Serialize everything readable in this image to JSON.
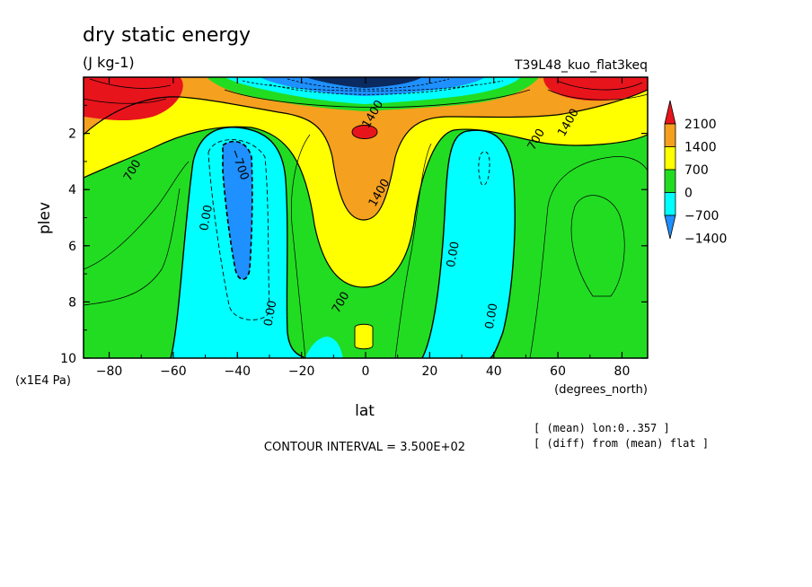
{
  "chart_data": {
    "type": "contour",
    "title": "dry static energy",
    "units": "(J kg-1)",
    "run_label": "T39L48_kuo_flat3keq",
    "xlabel": "lat",
    "x_units": "(degrees_north)",
    "ylabel": "plev",
    "y_units": "(x1E4 Pa)",
    "xlim": [
      -88,
      88
    ],
    "ylim": [
      0,
      10
    ],
    "y_inverted": true,
    "x_ticks": [
      -80,
      -60,
      -40,
      -20,
      0,
      20,
      40,
      60,
      80
    ],
    "x_tick_labels": [
      "-80",
      "-60",
      "-40",
      "-20",
      "0",
      "20",
      "40",
      "60",
      "80"
    ],
    "y_ticks": [
      2,
      4,
      6,
      8,
      10
    ],
    "y_tick_labels": [
      "2",
      "4",
      "6",
      "8",
      "10"
    ],
    "contour_interval_text": "CONTOUR INTERVAL = 3.500E+02",
    "notes": [
      "[ (mean) lon:0..357 ]",
      "[ (diff) from (mean) flat ]"
    ],
    "colorbar": {
      "labels": [
        "2100",
        "1400",
        "700",
        "0",
        "-700",
        "-1400"
      ],
      "colors": [
        "#e8141c",
        "#f5a01e",
        "#ffff00",
        "#22dc22",
        "#00ffff",
        "#1e90ff"
      ]
    },
    "contour_labels": [
      {
        "text": "1400",
        "lat": 2,
        "plev": 1.3
      },
      {
        "text": "1400",
        "lat": 4,
        "plev": 4.1
      },
      {
        "text": "1400",
        "lat": 63,
        "plev": 1.6
      },
      {
        "text": "700",
        "lat": -73,
        "plev": 3.3
      },
      {
        "text": "-700",
        "lat": -39,
        "plev": 3.1
      },
      {
        "text": "700",
        "lat": 53,
        "plev": 2.2
      },
      {
        "text": "700",
        "lat": -8,
        "plev": 8.0
      },
      {
        "text": "0.00",
        "lat": -50,
        "plev": 5.0
      },
      {
        "text": "0.00",
        "lat": -30,
        "plev": 8.4
      },
      {
        "text": "0.00",
        "lat": 27,
        "plev": 6.3
      },
      {
        "text": "0.00",
        "lat": 39,
        "plev": 8.5
      }
    ]
  }
}
